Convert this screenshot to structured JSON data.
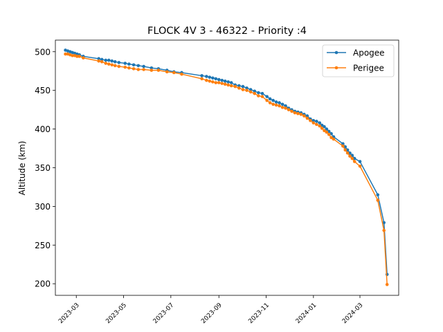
{
  "chart_data": {
    "type": "line",
    "title": "FLOCK 4V 3 - 46322 - Priority :4",
    "xlabel": "",
    "ylabel": "Altitude (km)",
    "ylim": [
      185,
      515
    ],
    "xlim": [
      "2023-02-02",
      "2024-04-20"
    ],
    "grid": false,
    "legend_position": "top-right",
    "x_ticks": [
      "2023-03",
      "2023-05",
      "2023-07",
      "2023-09",
      "2023-11",
      "2024-01",
      "2024-03"
    ],
    "y_ticks": [
      200,
      250,
      300,
      350,
      400,
      450,
      500
    ],
    "series": [
      {
        "name": "Apogee",
        "color": "#1f77b4",
        "points": [
          [
            "2023-02-15",
            502
          ],
          [
            "2023-02-18",
            501
          ],
          [
            "2023-02-21",
            500
          ],
          [
            "2023-02-24",
            499
          ],
          [
            "2023-02-27",
            498
          ],
          [
            "2023-03-02",
            497
          ],
          [
            "2023-03-05",
            496
          ],
          [
            "2023-03-10",
            494
          ],
          [
            "2023-03-30",
            491
          ],
          [
            "2023-04-03",
            490
          ],
          [
            "2023-04-08",
            489
          ],
          [
            "2023-04-12",
            489
          ],
          [
            "2023-04-16",
            488
          ],
          [
            "2023-04-20",
            487
          ],
          [
            "2023-04-25",
            486
          ],
          [
            "2023-05-03",
            485
          ],
          [
            "2023-05-08",
            484
          ],
          [
            "2023-05-14",
            483
          ],
          [
            "2023-05-20",
            482
          ],
          [
            "2023-05-27",
            481
          ],
          [
            "2023-06-06",
            479
          ],
          [
            "2023-06-15",
            478
          ],
          [
            "2023-06-26",
            476
          ],
          [
            "2023-07-05",
            474
          ],
          [
            "2023-07-15",
            473
          ],
          [
            "2023-08-10",
            469
          ],
          [
            "2023-08-16",
            468
          ],
          [
            "2023-08-20",
            467
          ],
          [
            "2023-08-24",
            466
          ],
          [
            "2023-08-28",
            465
          ],
          [
            "2023-09-01",
            464
          ],
          [
            "2023-09-05",
            463
          ],
          [
            "2023-09-09",
            462
          ],
          [
            "2023-09-13",
            461
          ],
          [
            "2023-09-17",
            460
          ],
          [
            "2023-09-22",
            457
          ],
          [
            "2023-09-27",
            456
          ],
          [
            "2023-10-02",
            455
          ],
          [
            "2023-10-07",
            453
          ],
          [
            "2023-10-12",
            451
          ],
          [
            "2023-10-17",
            449
          ],
          [
            "2023-10-22",
            447
          ],
          [
            "2023-10-27",
            446
          ],
          [
            "2023-11-02",
            442
          ],
          [
            "2023-11-06",
            439
          ],
          [
            "2023-11-10",
            437
          ],
          [
            "2023-11-14",
            435
          ],
          [
            "2023-11-18",
            434
          ],
          [
            "2023-11-22",
            432
          ],
          [
            "2023-11-26",
            430
          ],
          [
            "2023-11-30",
            427
          ],
          [
            "2023-12-04",
            425
          ],
          [
            "2023-12-08",
            423
          ],
          [
            "2023-12-12",
            422
          ],
          [
            "2023-12-16",
            421
          ],
          [
            "2023-12-20",
            419
          ],
          [
            "2023-12-24",
            417
          ],
          [
            "2023-12-28",
            413
          ],
          [
            "2024-01-01",
            411
          ],
          [
            "2024-01-05",
            410
          ],
          [
            "2024-01-09",
            408
          ],
          [
            "2024-01-12",
            405
          ],
          [
            "2024-01-15",
            403
          ],
          [
            "2024-01-18",
            400
          ],
          [
            "2024-01-21",
            397
          ],
          [
            "2024-01-24",
            394
          ],
          [
            "2024-01-27",
            390
          ],
          [
            "2024-02-08",
            381
          ],
          [
            "2024-02-11",
            377
          ],
          [
            "2024-02-14",
            373
          ],
          [
            "2024-02-17",
            369
          ],
          [
            "2024-02-20",
            366
          ],
          [
            "2024-02-23",
            362
          ],
          [
            "2024-03-01",
            358
          ],
          [
            "2024-03-24",
            315
          ],
          [
            "2024-04-01",
            279
          ],
          [
            "2024-04-05",
            212
          ]
        ]
      },
      {
        "name": "Perigee",
        "color": "#ff7f0e",
        "points": [
          [
            "2023-02-15",
            497
          ],
          [
            "2023-02-18",
            497
          ],
          [
            "2023-02-21",
            496
          ],
          [
            "2023-02-24",
            495
          ],
          [
            "2023-02-27",
            495
          ],
          [
            "2023-03-02",
            494
          ],
          [
            "2023-03-05",
            494
          ],
          [
            "2023-03-10",
            492
          ],
          [
            "2023-03-30",
            488
          ],
          [
            "2023-04-03",
            487
          ],
          [
            "2023-04-08",
            485
          ],
          [
            "2023-04-12",
            484
          ],
          [
            "2023-04-16",
            483
          ],
          [
            "2023-04-20",
            482
          ],
          [
            "2023-04-25",
            481
          ],
          [
            "2023-05-03",
            480
          ],
          [
            "2023-05-08",
            479
          ],
          [
            "2023-05-14",
            478
          ],
          [
            "2023-05-20",
            477
          ],
          [
            "2023-05-27",
            477
          ],
          [
            "2023-06-06",
            476
          ],
          [
            "2023-06-15",
            476
          ],
          [
            "2023-06-26",
            474
          ],
          [
            "2023-07-05",
            473
          ],
          [
            "2023-07-15",
            471
          ],
          [
            "2023-08-10",
            465
          ],
          [
            "2023-08-16",
            463
          ],
          [
            "2023-08-20",
            462
          ],
          [
            "2023-08-24",
            461
          ],
          [
            "2023-08-28",
            460
          ],
          [
            "2023-09-01",
            460
          ],
          [
            "2023-09-05",
            459
          ],
          [
            "2023-09-09",
            458
          ],
          [
            "2023-09-13",
            457
          ],
          [
            "2023-09-17",
            456
          ],
          [
            "2023-09-22",
            455
          ],
          [
            "2023-09-27",
            453
          ],
          [
            "2023-10-02",
            451
          ],
          [
            "2023-10-07",
            450
          ],
          [
            "2023-10-12",
            448
          ],
          [
            "2023-10-17",
            446
          ],
          [
            "2023-10-22",
            443
          ],
          [
            "2023-10-27",
            442
          ],
          [
            "2023-11-02",
            437
          ],
          [
            "2023-11-06",
            434
          ],
          [
            "2023-11-10",
            432
          ],
          [
            "2023-11-14",
            431
          ],
          [
            "2023-11-18",
            430
          ],
          [
            "2023-11-22",
            428
          ],
          [
            "2023-11-26",
            427
          ],
          [
            "2023-11-30",
            425
          ],
          [
            "2023-12-04",
            423
          ],
          [
            "2023-12-08",
            421
          ],
          [
            "2023-12-12",
            420
          ],
          [
            "2023-12-16",
            419
          ],
          [
            "2023-12-20",
            417
          ],
          [
            "2023-12-24",
            414
          ],
          [
            "2023-12-28",
            411
          ],
          [
            "2024-01-01",
            408
          ],
          [
            "2024-01-05",
            406
          ],
          [
            "2024-01-09",
            404
          ],
          [
            "2024-01-12",
            401
          ],
          [
            "2024-01-15",
            398
          ],
          [
            "2024-01-18",
            396
          ],
          [
            "2024-01-21",
            393
          ],
          [
            "2024-01-24",
            389
          ],
          [
            "2024-01-27",
            387
          ],
          [
            "2024-02-08",
            378
          ],
          [
            "2024-02-11",
            373
          ],
          [
            "2024-02-14",
            369
          ],
          [
            "2024-02-17",
            365
          ],
          [
            "2024-02-20",
            362
          ],
          [
            "2024-02-23",
            358
          ],
          [
            "2024-03-01",
            352
          ],
          [
            "2024-03-24",
            308
          ],
          [
            "2024-04-01",
            269
          ],
          [
            "2024-04-05",
            199
          ]
        ]
      }
    ]
  }
}
